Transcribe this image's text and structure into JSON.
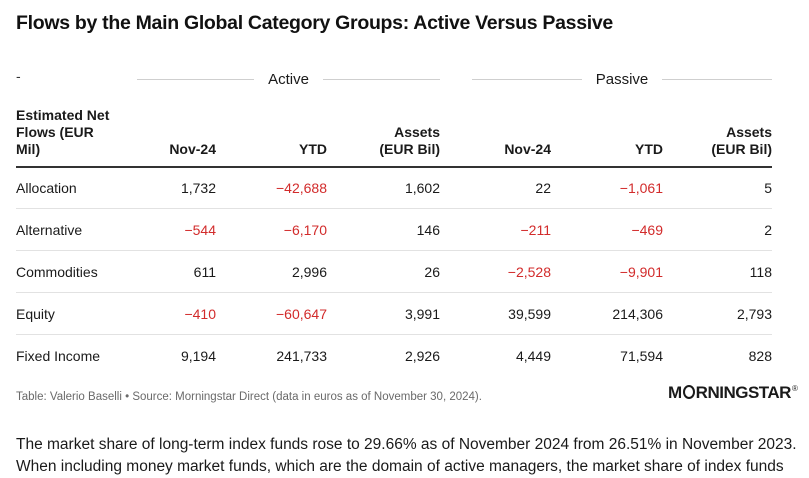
{
  "title": "Flows by the Main Global Category Groups: Active Versus Passive",
  "table": {
    "corner_mark": "-",
    "groups": {
      "active": "Active",
      "passive": "Passive"
    },
    "headers": {
      "first": "Estimated Net Flows (EUR Mil)",
      "active_nov": "Nov-24",
      "active_ytd": "YTD",
      "active_assets": "Assets (EUR Bil)",
      "passive_nov": "Nov-24",
      "passive_ytd": "YTD",
      "passive_assets": "Assets (EUR Bil)"
    },
    "rows": [
      {
        "category": "Allocation",
        "a_nov": "1,732",
        "a_ytd": "−42,688",
        "a_assets": "1,602",
        "p_nov": "22",
        "p_ytd": "−1,061",
        "p_assets": "5"
      },
      {
        "category": "Alternative",
        "a_nov": "−544",
        "a_ytd": "−6,170",
        "a_assets": "146",
        "p_nov": "−211",
        "p_ytd": "−469",
        "p_assets": "2"
      },
      {
        "category": "Commodities",
        "a_nov": "611",
        "a_ytd": "2,996",
        "a_assets": "26",
        "p_nov": "−2,528",
        "p_ytd": "−9,901",
        "p_assets": "118"
      },
      {
        "category": "Equity",
        "a_nov": "−410",
        "a_ytd": "−60,647",
        "a_assets": "3,991",
        "p_nov": "39,599",
        "p_ytd": "214,306",
        "p_assets": "2,793"
      },
      {
        "category": "Fixed Income",
        "a_nov": "9,194",
        "a_ytd": "241,733",
        "a_assets": "2,926",
        "p_nov": "4,449",
        "p_ytd": "71,594",
        "p_assets": "828"
      }
    ],
    "negative_color": "#d22b2b"
  },
  "source": "Table: Valerio Baselli • Source: Morningstar Direct (data in euros as of November 30, 2024).",
  "logo": {
    "text_left": "M",
    "text_right": "RNINGSTAR",
    "reg": "®"
  },
  "body_text": "The market share of long-term index funds rose to 29.66% as of November 2024 from 26.51% in November 2023. When including money market funds, which are the domain of active managers, the market share of index funds"
}
